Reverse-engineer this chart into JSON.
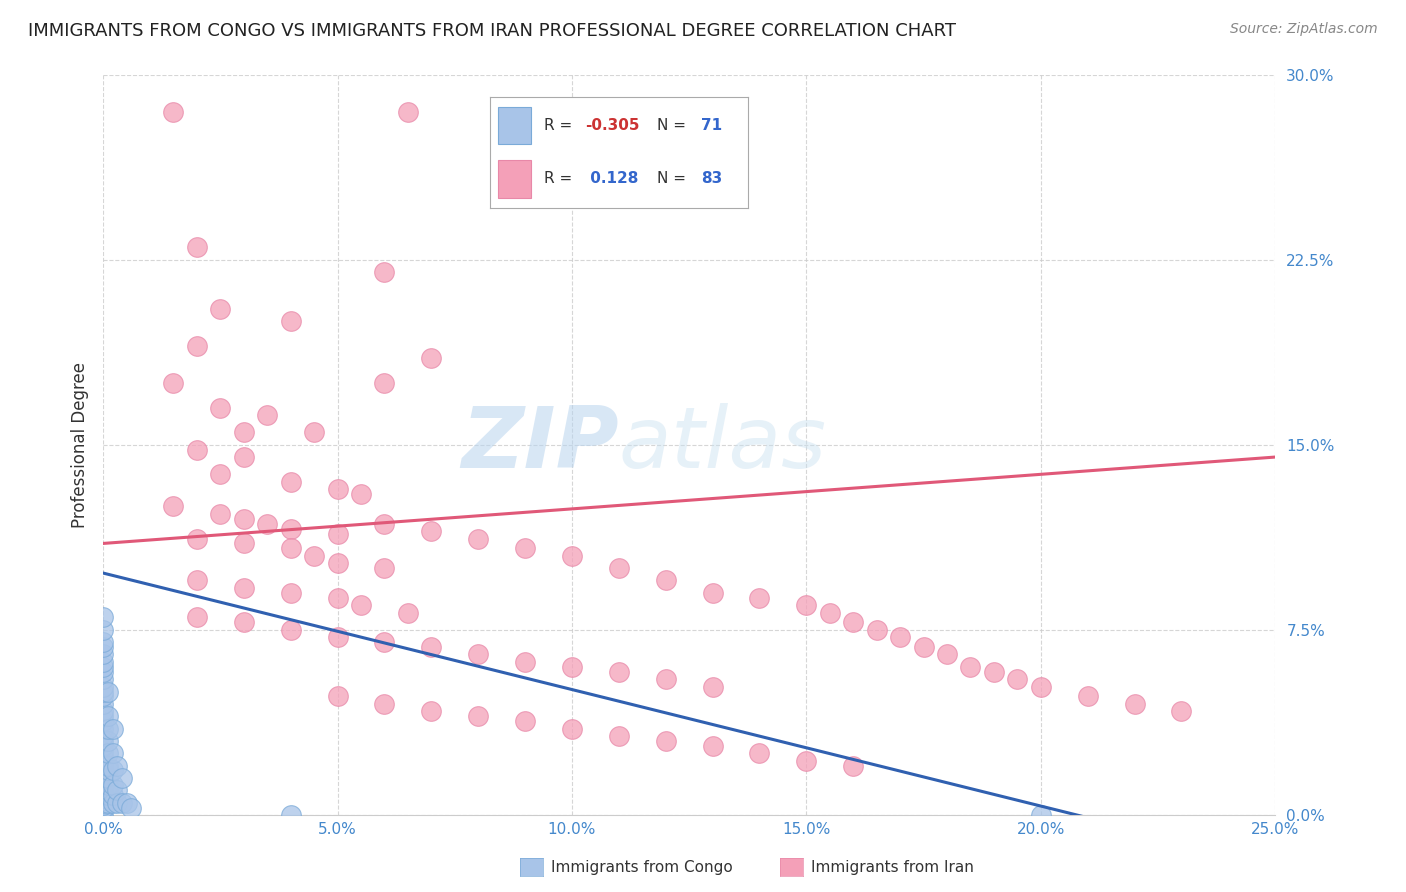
{
  "title": "IMMIGRANTS FROM CONGO VS IMMIGRANTS FROM IRAN PROFESSIONAL DEGREE CORRELATION CHART",
  "source": "Source: ZipAtlas.com",
  "xlim": [
    0.0,
    0.25
  ],
  "ylim": [
    0.0,
    0.3
  ],
  "watermark_line1": "ZIP",
  "watermark_line2": "atlas",
  "congo_color": "#a8c4e8",
  "iran_color": "#f4a0b8",
  "congo_line_color": "#3060b0",
  "iran_line_color": "#e05878",
  "congo_R": -0.305,
  "iran_R": 0.128,
  "congo_N": 71,
  "iran_N": 83,
  "congo_scatter": [
    [
      0.0,
      0.0
    ],
    [
      0.0,
      0.002
    ],
    [
      0.0,
      0.003
    ],
    [
      0.0,
      0.004
    ],
    [
      0.0,
      0.005
    ],
    [
      0.0,
      0.006
    ],
    [
      0.0,
      0.007
    ],
    [
      0.0,
      0.008
    ],
    [
      0.0,
      0.009
    ],
    [
      0.0,
      0.01
    ],
    [
      0.0,
      0.011
    ],
    [
      0.0,
      0.012
    ],
    [
      0.0,
      0.013
    ],
    [
      0.0,
      0.014
    ],
    [
      0.0,
      0.015
    ],
    [
      0.0,
      0.016
    ],
    [
      0.0,
      0.017
    ],
    [
      0.0,
      0.018
    ],
    [
      0.0,
      0.019
    ],
    [
      0.0,
      0.02
    ],
    [
      0.0,
      0.021
    ],
    [
      0.0,
      0.022
    ],
    [
      0.0,
      0.024
    ],
    [
      0.0,
      0.026
    ],
    [
      0.0,
      0.028
    ],
    [
      0.0,
      0.03
    ],
    [
      0.0,
      0.032
    ],
    [
      0.0,
      0.035
    ],
    [
      0.0,
      0.038
    ],
    [
      0.0,
      0.04
    ],
    [
      0.0,
      0.042
    ],
    [
      0.0,
      0.045
    ],
    [
      0.0,
      0.048
    ],
    [
      0.0,
      0.05
    ],
    [
      0.0,
      0.052
    ],
    [
      0.0,
      0.055
    ],
    [
      0.0,
      0.058
    ],
    [
      0.0,
      0.06
    ],
    [
      0.0,
      0.062
    ],
    [
      0.0,
      0.065
    ],
    [
      0.0,
      0.068
    ],
    [
      0.0,
      0.07
    ],
    [
      0.0,
      0.075
    ],
    [
      0.0,
      0.08
    ],
    [
      0.001,
      0.005
    ],
    [
      0.001,
      0.008
    ],
    [
      0.001,
      0.01
    ],
    [
      0.001,
      0.012
    ],
    [
      0.001,
      0.015
    ],
    [
      0.001,
      0.018
    ],
    [
      0.001,
      0.02
    ],
    [
      0.001,
      0.025
    ],
    [
      0.001,
      0.03
    ],
    [
      0.001,
      0.035
    ],
    [
      0.001,
      0.04
    ],
    [
      0.001,
      0.05
    ],
    [
      0.002,
      0.005
    ],
    [
      0.002,
      0.008
    ],
    [
      0.002,
      0.012
    ],
    [
      0.002,
      0.018
    ],
    [
      0.002,
      0.025
    ],
    [
      0.002,
      0.035
    ],
    [
      0.003,
      0.005
    ],
    [
      0.003,
      0.01
    ],
    [
      0.003,
      0.02
    ],
    [
      0.004,
      0.005
    ],
    [
      0.004,
      0.015
    ],
    [
      0.005,
      0.005
    ],
    [
      0.006,
      0.003
    ],
    [
      0.04,
      0.0
    ],
    [
      0.2,
      0.0
    ]
  ],
  "iran_scatter": [
    [
      0.015,
      0.285
    ],
    [
      0.065,
      0.285
    ],
    [
      0.02,
      0.23
    ],
    [
      0.06,
      0.22
    ],
    [
      0.025,
      0.205
    ],
    [
      0.04,
      0.2
    ],
    [
      0.02,
      0.19
    ],
    [
      0.07,
      0.185
    ],
    [
      0.015,
      0.175
    ],
    [
      0.06,
      0.175
    ],
    [
      0.025,
      0.165
    ],
    [
      0.035,
      0.162
    ],
    [
      0.03,
      0.155
    ],
    [
      0.045,
      0.155
    ],
    [
      0.02,
      0.148
    ],
    [
      0.03,
      0.145
    ],
    [
      0.025,
      0.138
    ],
    [
      0.04,
      0.135
    ],
    [
      0.05,
      0.132
    ],
    [
      0.055,
      0.13
    ],
    [
      0.015,
      0.125
    ],
    [
      0.025,
      0.122
    ],
    [
      0.03,
      0.12
    ],
    [
      0.035,
      0.118
    ],
    [
      0.04,
      0.116
    ],
    [
      0.05,
      0.114
    ],
    [
      0.02,
      0.112
    ],
    [
      0.03,
      0.11
    ],
    [
      0.04,
      0.108
    ],
    [
      0.045,
      0.105
    ],
    [
      0.05,
      0.102
    ],
    [
      0.06,
      0.1
    ],
    [
      0.02,
      0.095
    ],
    [
      0.03,
      0.092
    ],
    [
      0.04,
      0.09
    ],
    [
      0.05,
      0.088
    ],
    [
      0.055,
      0.085
    ],
    [
      0.065,
      0.082
    ],
    [
      0.02,
      0.08
    ],
    [
      0.03,
      0.078
    ],
    [
      0.04,
      0.075
    ],
    [
      0.05,
      0.072
    ],
    [
      0.06,
      0.07
    ],
    [
      0.07,
      0.068
    ],
    [
      0.08,
      0.065
    ],
    [
      0.09,
      0.062
    ],
    [
      0.1,
      0.06
    ],
    [
      0.11,
      0.058
    ],
    [
      0.12,
      0.055
    ],
    [
      0.13,
      0.052
    ],
    [
      0.05,
      0.048
    ],
    [
      0.06,
      0.045
    ],
    [
      0.07,
      0.042
    ],
    [
      0.08,
      0.04
    ],
    [
      0.09,
      0.038
    ],
    [
      0.1,
      0.035
    ],
    [
      0.11,
      0.032
    ],
    [
      0.12,
      0.03
    ],
    [
      0.13,
      0.028
    ],
    [
      0.14,
      0.025
    ],
    [
      0.15,
      0.022
    ],
    [
      0.16,
      0.02
    ],
    [
      0.06,
      0.118
    ],
    [
      0.07,
      0.115
    ],
    [
      0.08,
      0.112
    ],
    [
      0.09,
      0.108
    ],
    [
      0.1,
      0.105
    ],
    [
      0.11,
      0.1
    ],
    [
      0.12,
      0.095
    ],
    [
      0.13,
      0.09
    ],
    [
      0.14,
      0.088
    ],
    [
      0.15,
      0.085
    ],
    [
      0.155,
      0.082
    ],
    [
      0.16,
      0.078
    ],
    [
      0.165,
      0.075
    ],
    [
      0.17,
      0.072
    ],
    [
      0.175,
      0.068
    ],
    [
      0.18,
      0.065
    ],
    [
      0.185,
      0.06
    ],
    [
      0.19,
      0.058
    ],
    [
      0.195,
      0.055
    ],
    [
      0.2,
      0.052
    ],
    [
      0.21,
      0.048
    ],
    [
      0.22,
      0.045
    ],
    [
      0.23,
      0.042
    ]
  ]
}
